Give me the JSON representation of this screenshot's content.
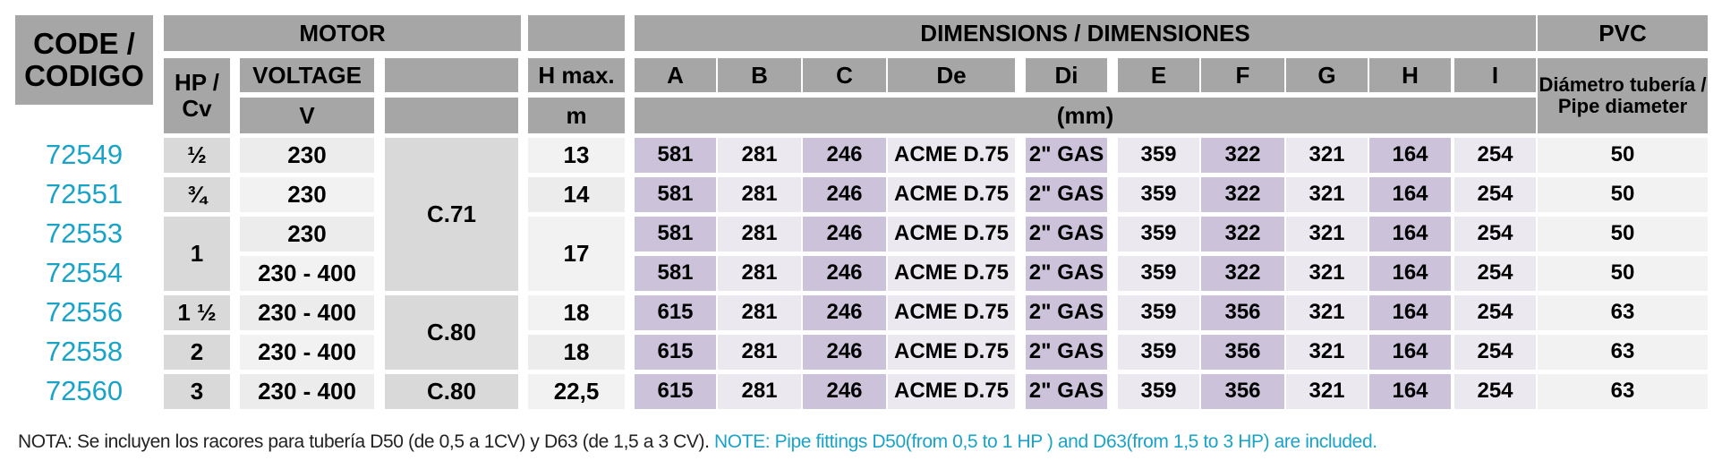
{
  "header": {
    "code": "CODE / CODIGO",
    "motor": "MOTOR",
    "hp": "HP / Cv",
    "voltage": "VOLTAGE",
    "voltage_unit": "V",
    "hmax": "H max.",
    "hmax_unit": "m",
    "dimensions": "DIMENSIONS / DIMENSIONES",
    "dim_unit": "(mm)",
    "dim_columns": [
      "A",
      "B",
      "C",
      "De",
      "Di",
      "E",
      "F",
      "G",
      "H",
      "I"
    ],
    "pvc": "PVC",
    "pipe_diameter": "Diámetro tubería / Pipe diameter"
  },
  "rows": [
    {
      "code": "72549",
      "dims": [
        "581",
        "281",
        "246",
        "ACME D.75",
        "2\" GAS",
        "359",
        "322",
        "321",
        "164",
        "254"
      ],
      "pvc": "50"
    },
    {
      "code": "72551",
      "dims": [
        "581",
        "281",
        "246",
        "ACME D.75",
        "2\" GAS",
        "359",
        "322",
        "321",
        "164",
        "254"
      ],
      "pvc": "50"
    },
    {
      "code": "72553",
      "dims": [
        "581",
        "281",
        "246",
        "ACME D.75",
        "2\" GAS",
        "359",
        "322",
        "321",
        "164",
        "254"
      ],
      "pvc": "50"
    },
    {
      "code": "72554",
      "dims": [
        "581",
        "281",
        "246",
        "ACME D.75",
        "2\" GAS",
        "359",
        "322",
        "321",
        "164",
        "254"
      ],
      "pvc": "50"
    },
    {
      "code": "72556",
      "dims": [
        "615",
        "281",
        "246",
        "ACME D.75",
        "2\" GAS",
        "359",
        "356",
        "321",
        "164",
        "254"
      ],
      "pvc": "63"
    },
    {
      "code": "72558",
      "dims": [
        "615",
        "281",
        "246",
        "ACME D.75",
        "2\" GAS",
        "359",
        "356",
        "321",
        "164",
        "254"
      ],
      "pvc": "63"
    },
    {
      "code": "72560",
      "dims": [
        "615",
        "281",
        "246",
        "ACME D.75",
        "2\" GAS",
        "359",
        "356",
        "321",
        "164",
        "254"
      ],
      "pvc": "63"
    }
  ],
  "hp_groups": [
    {
      "first": 0,
      "span": 1,
      "value": "½"
    },
    {
      "first": 1,
      "span": 1,
      "value": "¾"
    },
    {
      "first": 2,
      "span": 2,
      "value": "1"
    },
    {
      "first": 4,
      "span": 1,
      "value": "1 ½"
    },
    {
      "first": 5,
      "span": 1,
      "value": "2"
    },
    {
      "first": 6,
      "span": 1,
      "value": "3"
    }
  ],
  "voltage_groups": [
    {
      "first": 0,
      "span": 1,
      "value": "230"
    },
    {
      "first": 1,
      "span": 1,
      "value": "230"
    },
    {
      "first": 2,
      "span": 1,
      "value": "230"
    },
    {
      "first": 3,
      "span": 1,
      "value": "230 - 400"
    },
    {
      "first": 4,
      "span": 1,
      "value": "230 - 400"
    },
    {
      "first": 5,
      "span": 1,
      "value": "230 - 400"
    },
    {
      "first": 6,
      "span": 1,
      "value": "230 - 400"
    }
  ],
  "motor_groups": [
    {
      "first": 0,
      "span": 4,
      "value": "C.71"
    },
    {
      "first": 4,
      "span": 2,
      "value": "C.80"
    },
    {
      "first": 6,
      "span": 1,
      "value": "C.80"
    }
  ],
  "hmax_groups": [
    {
      "first": 0,
      "span": 1,
      "value": "13"
    },
    {
      "first": 1,
      "span": 1,
      "value": "14"
    },
    {
      "first": 2,
      "span": 2,
      "value": "17"
    },
    {
      "first": 4,
      "span": 1,
      "value": "18"
    },
    {
      "first": 5,
      "span": 1,
      "value": "18"
    },
    {
      "first": 6,
      "span": 1,
      "value": "22,5"
    }
  ],
  "note": {
    "es": "NOTA: Se incluyen los racores para  tubería D50 (de 0,5 a 1CV) y D63 (de 1,5 a 3 CV).",
    "en": "NOTE: Pipe fittings D50(from 0,5 to 1 HP ) and D63(from 1,5 to 3 HP) are included."
  },
  "colors": {
    "header_dark": "#a6a6a6",
    "header_light": "#d9d9d9",
    "code_text": "#1aa3c7",
    "dim_purple": "#ccc3db",
    "dim_light": "#ebe8f0",
    "row_light": "#f2f2f2",
    "group_grey": "#d9d9d9"
  }
}
